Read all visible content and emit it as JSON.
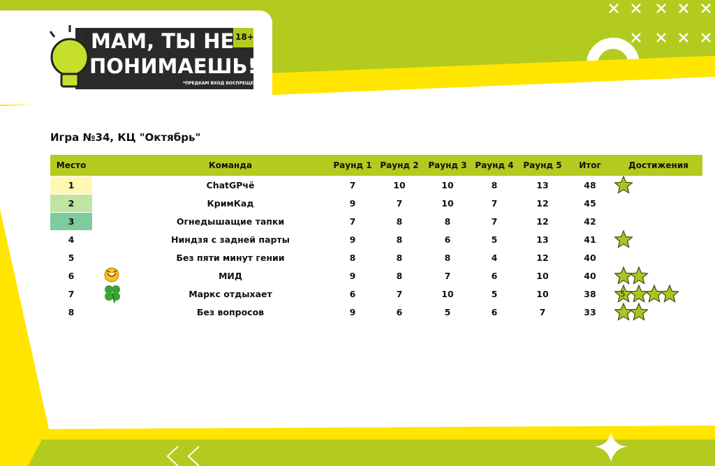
{
  "logo": {
    "line1": "МАМ, ТЫ НЕ",
    "line2": "ПОНИМАЕШЬ!",
    "age": "18+",
    "note": "*ПРЕДКАМ ВХОД ВОСПРЕЩЕН"
  },
  "game_title": "Игра №34, КЦ \"Октябрь\"",
  "table": {
    "headers": [
      "Место",
      "Команда",
      "Раунд 1",
      "Раунд 2",
      "Раунд 3",
      "Раунд 4",
      "Раунд 5",
      "Итог",
      "Достижения"
    ],
    "rows": [
      {
        "place": 1,
        "team": "ChatGPчё",
        "rounds": [
          7,
          10,
          10,
          8,
          13
        ],
        "total": 48,
        "achievements": 1
      },
      {
        "place": 2,
        "team": "КримКад",
        "rounds": [
          9,
          7,
          10,
          7,
          12
        ],
        "total": 45,
        "achievements": 0
      },
      {
        "place": 3,
        "team": "Огнедышащие тапки",
        "rounds": [
          7,
          8,
          8,
          7,
          12
        ],
        "total": 42,
        "achievements": 0
      },
      {
        "place": 4,
        "team": "Ниндзя с задней парты",
        "rounds": [
          9,
          8,
          6,
          5,
          13
        ],
        "total": 41,
        "achievements": 1
      },
      {
        "place": 5,
        "team": "Без пяти минут гении",
        "rounds": [
          8,
          8,
          8,
          4,
          12
        ],
        "total": 40,
        "achievements": 0
      },
      {
        "place": 6,
        "team": "МИД",
        "rounds": [
          9,
          8,
          7,
          6,
          10
        ],
        "total": 40,
        "achievements": 2
      },
      {
        "place": 7,
        "team": "Маркс отдыхает",
        "rounds": [
          6,
          7,
          10,
          5,
          10
        ],
        "total": 38,
        "achievements": 4,
        "achievement_label": "5"
      },
      {
        "place": 8,
        "team": "Без вопросов",
        "rounds": [
          9,
          6,
          5,
          6,
          7
        ],
        "total": 33,
        "achievements": 2
      }
    ]
  }
}
